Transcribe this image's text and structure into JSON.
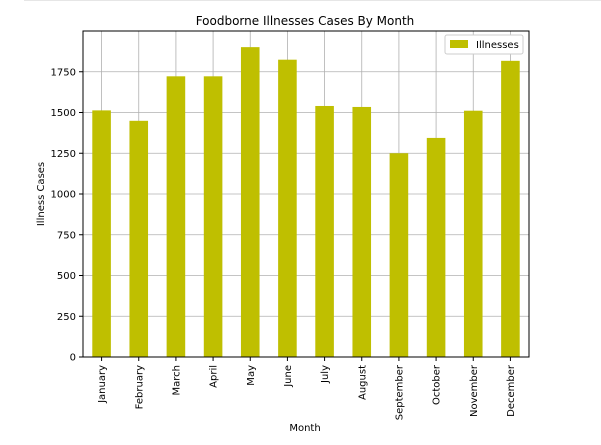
{
  "chart_data": {
    "type": "bar",
    "title": "Foodborne Illnesses Cases By Month",
    "xlabel": "Month",
    "ylabel": "Illness Cases",
    "categories": [
      "January",
      "February",
      "March",
      "April",
      "May",
      "June",
      "July",
      "August",
      "September",
      "October",
      "November",
      "December"
    ],
    "series": [
      {
        "name": "Illnesses",
        "values": [
          1513,
          1449,
          1722,
          1722,
          1901,
          1824,
          1540,
          1534,
          1250,
          1344,
          1511,
          1817
        ]
      }
    ],
    "ylim": [
      0,
      2000
    ],
    "yticks": [
      0,
      250,
      500,
      750,
      1000,
      1250,
      1500,
      1750
    ],
    "grid": true,
    "legend_position": "top-right",
    "bar_color": "#bfbf00"
  }
}
